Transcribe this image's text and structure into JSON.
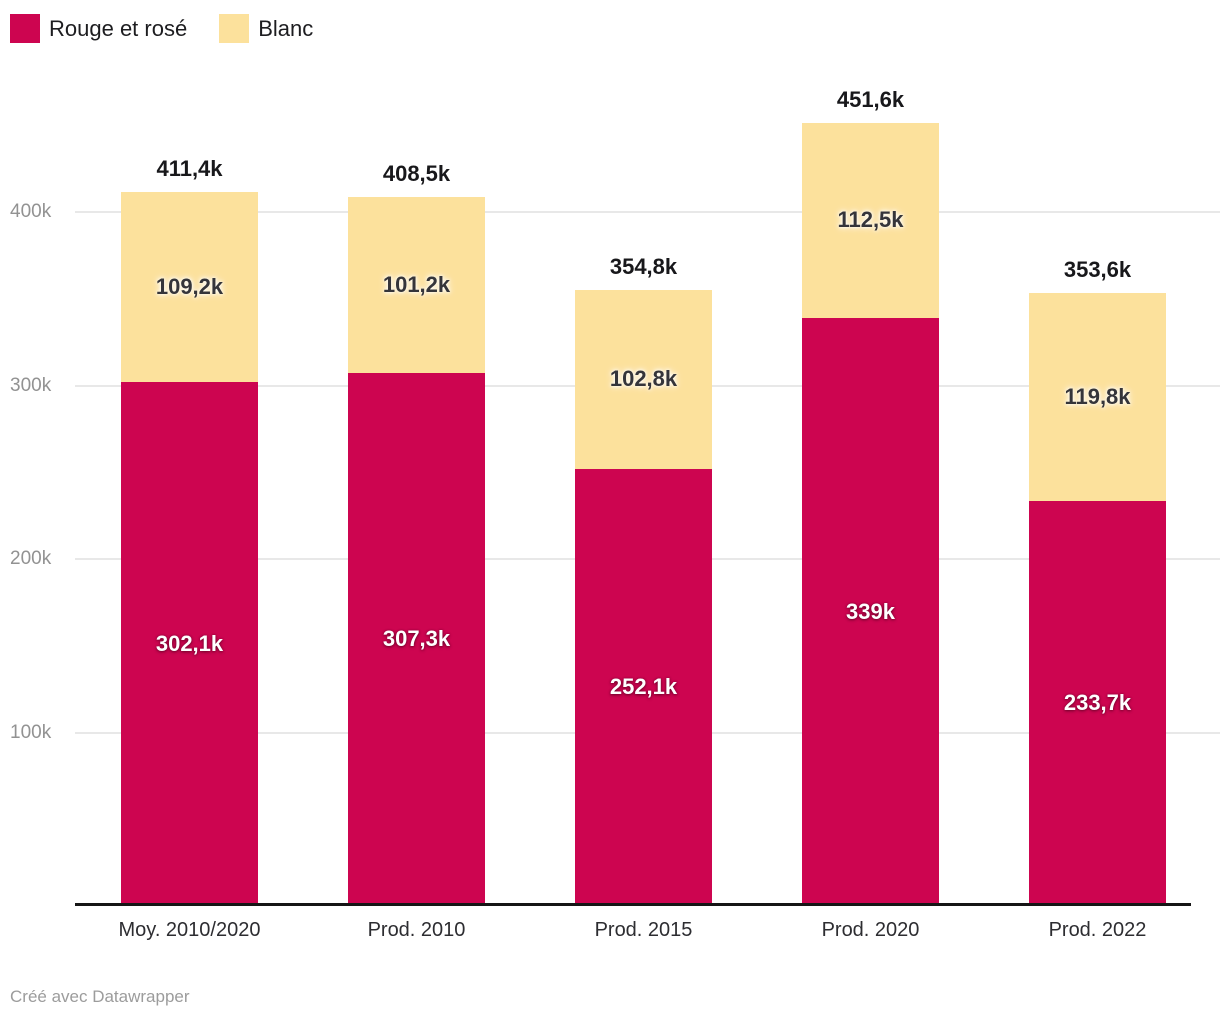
{
  "legend": {
    "items": [
      {
        "label": "Rouge et rosé",
        "color": "#cd0550"
      },
      {
        "label": "Blanc",
        "color": "#fce19c"
      }
    ]
  },
  "footer": {
    "credit": "Créé avec Datawrapper"
  },
  "colors": {
    "rouge": "#cd0550",
    "blanc": "#fce19c",
    "gridline": "#e8e8e8",
    "axis_line": "#161616",
    "y_tick_text": "#929292",
    "x_tick_text": "#2d2d31",
    "total_label_text": "#18181b",
    "footer_text": "#9c9c9c"
  },
  "chart_data": {
    "type": "bar",
    "stacked": true,
    "title": "",
    "xlabel": "",
    "ylabel": "",
    "unit": "k",
    "legend_position": "top-left",
    "grid": true,
    "categories": [
      "Moy. 2010/2020",
      "Prod. 2010",
      "Prod. 2015",
      "Prod. 2020",
      "Prod. 2022"
    ],
    "series": [
      {
        "name": "Rouge et rosé",
        "color": "#cd0550",
        "values": [
          302.1,
          307.3,
          252.1,
          339,
          233.7
        ],
        "value_labels": [
          "302,1k",
          "307,3k",
          "252,1k",
          "339k",
          "233,7k"
        ]
      },
      {
        "name": "Blanc",
        "color": "#fce19c",
        "values": [
          109.2,
          101.2,
          102.8,
          112.5,
          119.8
        ],
        "value_labels": [
          "109,2k",
          "101,2k",
          "102,8k",
          "112,5k",
          "119,8k"
        ]
      }
    ],
    "totals": [
      411.4,
      408.5,
      354.8,
      451.6,
      353.6
    ],
    "total_labels": [
      "411,4k",
      "408,5k",
      "354,8k",
      "451,6k",
      "353,6k"
    ],
    "y_axis": {
      "range": [
        0,
        487
      ],
      "ticks": [
        {
          "value": 100,
          "label": "100k"
        },
        {
          "value": 200,
          "label": "200k"
        },
        {
          "value": 300,
          "label": "300k"
        },
        {
          "value": 400,
          "label": "400k"
        }
      ]
    }
  }
}
